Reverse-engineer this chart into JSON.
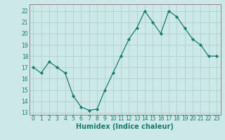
{
  "x": [
    0,
    1,
    2,
    3,
    4,
    5,
    6,
    7,
    8,
    9,
    10,
    11,
    12,
    13,
    14,
    15,
    16,
    17,
    18,
    19,
    20,
    21,
    22,
    23
  ],
  "y": [
    17,
    16.5,
    17.5,
    17,
    16.5,
    14.5,
    13.5,
    13.2,
    13.3,
    15,
    16.5,
    18,
    19.5,
    20.5,
    22,
    21,
    20,
    22,
    21.5,
    20.5,
    19.5,
    19,
    18,
    18
  ],
  "line_color": "#1a7a6e",
  "marker": "D",
  "marker_size": 2.2,
  "bg_color": "#cce8e8",
  "grid_color": "#aacccc",
  "xlabel": "Humidex (Indice chaleur)",
  "ylim": [
    12.8,
    22.6
  ],
  "xlim": [
    -0.5,
    23.5
  ],
  "yticks": [
    13,
    14,
    15,
    16,
    17,
    18,
    19,
    20,
    21,
    22
  ],
  "xticks": [
    0,
    1,
    2,
    3,
    4,
    5,
    6,
    7,
    8,
    9,
    10,
    11,
    12,
    13,
    14,
    15,
    16,
    17,
    18,
    19,
    20,
    21,
    22,
    23
  ],
  "tick_fontsize": 5.5,
  "xlabel_fontsize": 7,
  "linewidth": 0.9
}
